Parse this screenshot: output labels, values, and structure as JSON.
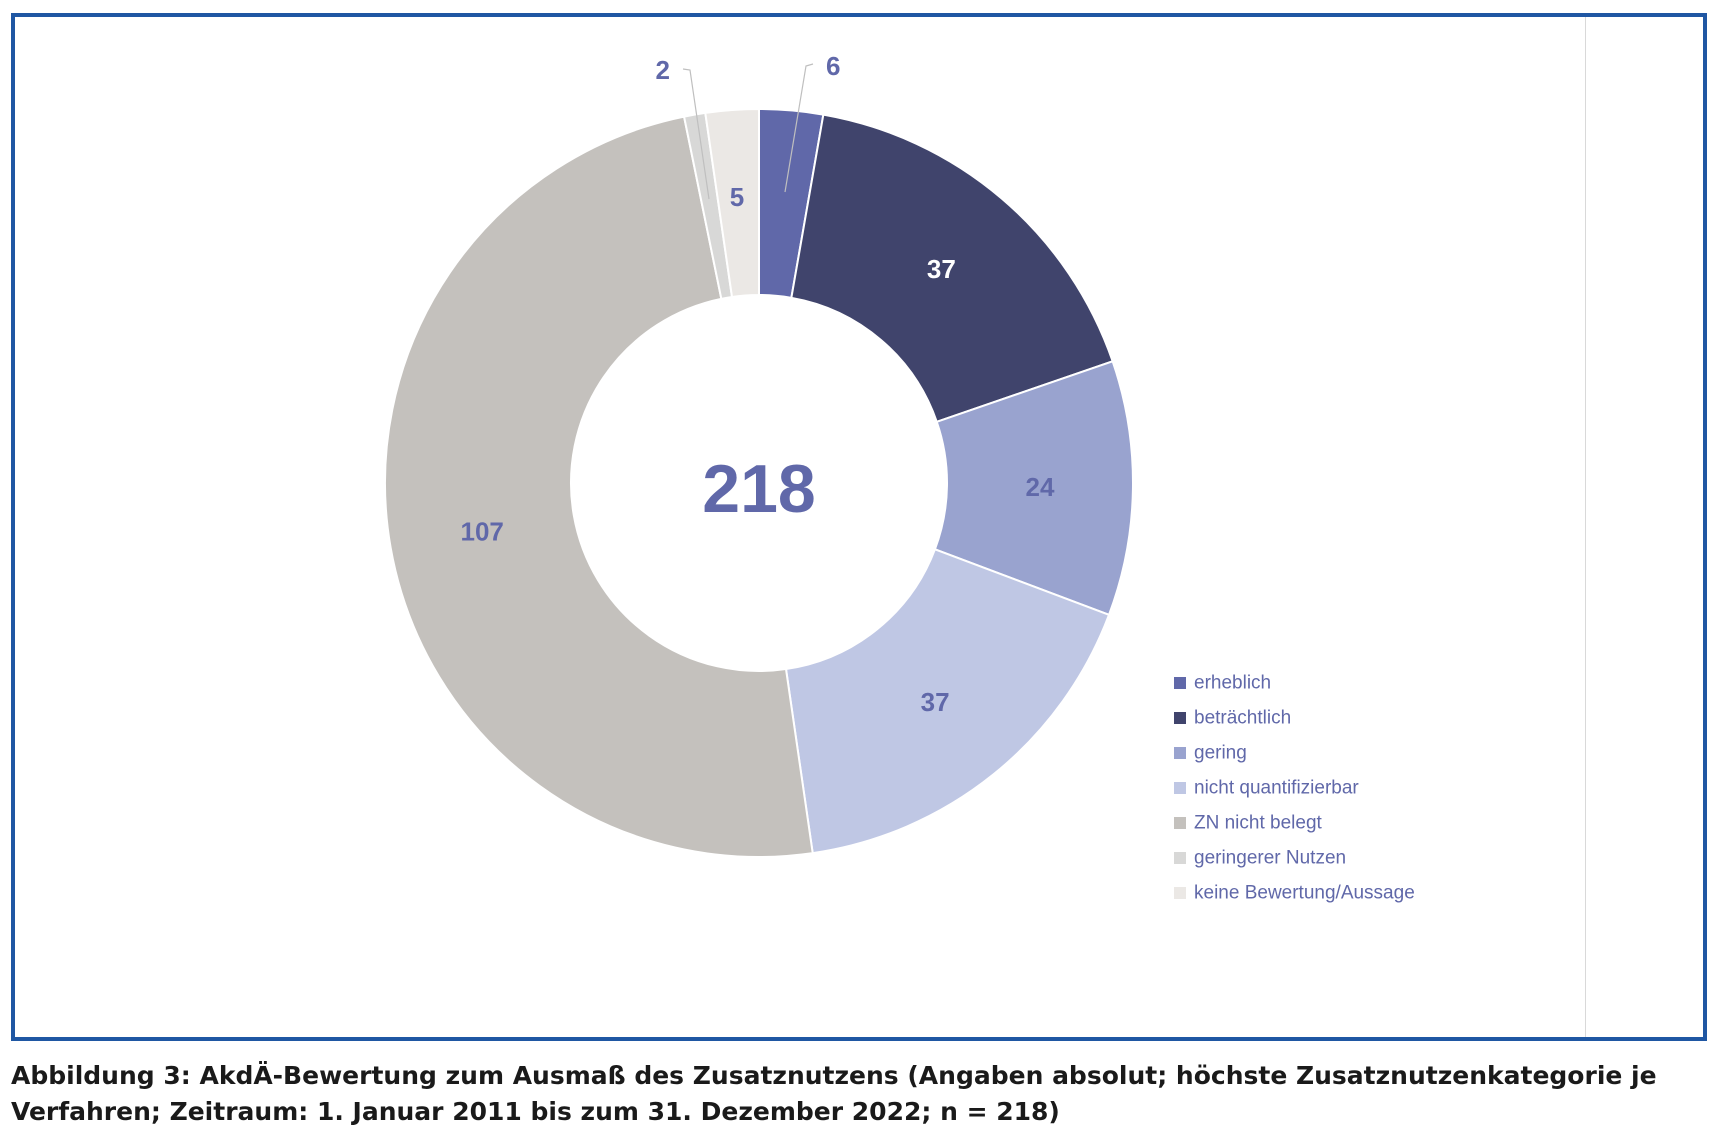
{
  "chart_data": {
    "type": "pie",
    "variant": "donut",
    "center_label": "218",
    "categories": [
      "erheblich",
      "beträchtlich",
      "gering",
      "nicht quantifizierbar",
      "ZN nicht belegt",
      "geringerer Nutzen",
      "keine Bewertung/Aussage"
    ],
    "values": [
      6,
      37,
      24,
      37,
      107,
      2,
      5
    ],
    "colors": [
      "#6068a9",
      "#40446c",
      "#99a3cf",
      "#bfc7e4",
      "#c4c1bd",
      "#d8d8d7",
      "#ebe8e5"
    ],
    "label_colors": [
      "#6068a9",
      "#ffffff",
      "#6068a9",
      "#6068a9",
      "#6068a9",
      "#6068a9",
      "#6068a9"
    ],
    "legend_position": "bottom-right"
  },
  "caption": "Abbildung 3: AkdÄ-Bewertung zum Ausmaß des Zusatznutzens (Angaben absolut; höchste Zusatznutzenkategorie je Verfahren; Zeitraum: 1. Januar 2011 bis zum 31. Dezember 2022; n = 218)"
}
